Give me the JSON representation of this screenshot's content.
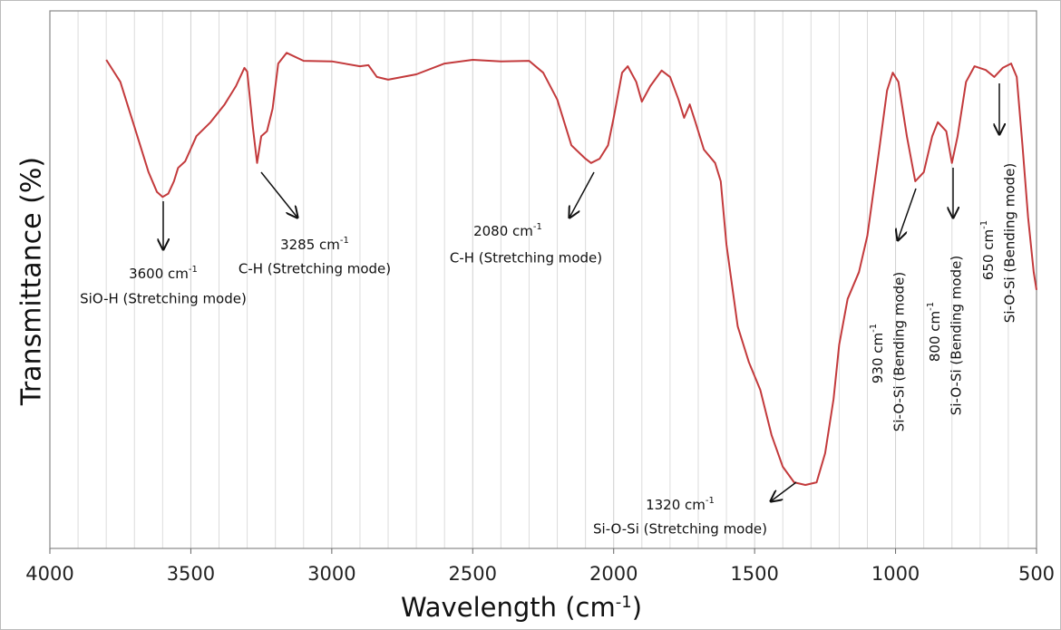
{
  "chart_data": {
    "type": "line",
    "xlabel": {
      "text": "Wavelength (cm",
      "sup": "-1",
      "tail": ")"
    },
    "ylabel": "Transmittance (%)",
    "xlim": [
      4000,
      500
    ],
    "ylim": [
      0,
      100
    ],
    "xticks": [
      4000,
      3500,
      3000,
      2500,
      2000,
      1500,
      1000,
      500
    ],
    "xminorticks": [
      3900,
      3800,
      3700,
      3600,
      3400,
      3300,
      3200,
      3100,
      2900,
      2800,
      2700,
      2600,
      2400,
      2300,
      2200,
      2100,
      1900,
      1800,
      1700,
      1600,
      1400,
      1300,
      1200,
      1100,
      900,
      800,
      700,
      600
    ],
    "grid": true,
    "series": [
      {
        "color": "#c33a3c",
        "x": [
          3800,
          3750,
          3700,
          3650,
          3620,
          3600,
          3580,
          3560,
          3545,
          3520,
          3480,
          3430,
          3380,
          3340,
          3310,
          3300,
          3280,
          3265,
          3250,
          3230,
          3210,
          3190,
          3160,
          3100,
          3000,
          2900,
          2870,
          2840,
          2800,
          2700,
          2600,
          2500,
          2400,
          2300,
          2250,
          2200,
          2150,
          2100,
          2080,
          2050,
          2020,
          2000,
          1970,
          1950,
          1920,
          1900,
          1870,
          1830,
          1800,
          1770,
          1750,
          1730,
          1710,
          1680,
          1640,
          1620,
          1600,
          1560,
          1520,
          1480,
          1440,
          1400,
          1360,
          1320,
          1280,
          1250,
          1220,
          1200,
          1170,
          1130,
          1100,
          1060,
          1030,
          1010,
          990,
          960,
          930,
          900,
          870,
          850,
          820,
          800,
          780,
          750,
          720,
          680,
          650,
          620,
          590,
          570,
          550,
          530,
          510,
          500
        ],
        "values": [
          90.9,
          86.8,
          78.4,
          70,
          66.3,
          65.4,
          66,
          68.3,
          70.8,
          72,
          76.7,
          79.3,
          82.6,
          86,
          89.4,
          88.7,
          78.4,
          71.7,
          76.7,
          77.6,
          81.8,
          90.2,
          92.2,
          90.7,
          90.6,
          89.7,
          89.9,
          87.7,
          87.2,
          88.2,
          90.2,
          90.9,
          90.6,
          90.7,
          88.5,
          83.5,
          75,
          72.5,
          71.7,
          72.5,
          75,
          80.1,
          88.5,
          89.7,
          86.8,
          83.1,
          86,
          88.9,
          87.7,
          83.5,
          80.1,
          82.6,
          79.3,
          74.2,
          71.7,
          68.3,
          56.5,
          41.3,
          34.6,
          29.5,
          21.1,
          15.2,
          12.3,
          11.8,
          12.3,
          17.7,
          27.8,
          37.9,
          46.4,
          51.4,
          58.2,
          73.4,
          85.2,
          88.5,
          86.8,
          76.7,
          68.3,
          70,
          76.7,
          79.3,
          77.6,
          71.7,
          76.7,
          86.8,
          89.7,
          89,
          87.7,
          89.4,
          90.2,
          87.7,
          75,
          61.6,
          51.4,
          48.1
        ]
      }
    ],
    "annotations": [
      {
        "text": "3600 cm",
        "sup": "-1",
        "mode": "SiO-H (Stretching mode)"
      },
      {
        "text": "3285 cm",
        "sup": "-1",
        "mode": "C-H (Stretching mode)"
      },
      {
        "text": "2080 cm",
        "sup": "-1",
        "mode": "C-H (Stretching mode)"
      },
      {
        "text": "1320 cm",
        "sup": "-1",
        "mode": "Si-O-Si (Stretching mode)"
      },
      {
        "text": "930 cm",
        "sup": "-1",
        "mode": "Si-O-Si (Bending mode)"
      },
      {
        "text": "800 cm",
        "sup": "-1",
        "mode": "Si-O-Si (Bending mode)"
      },
      {
        "text": "650 cm",
        "sup": "-1",
        "mode": "Si-O-Si (Bending mode)"
      }
    ]
  }
}
